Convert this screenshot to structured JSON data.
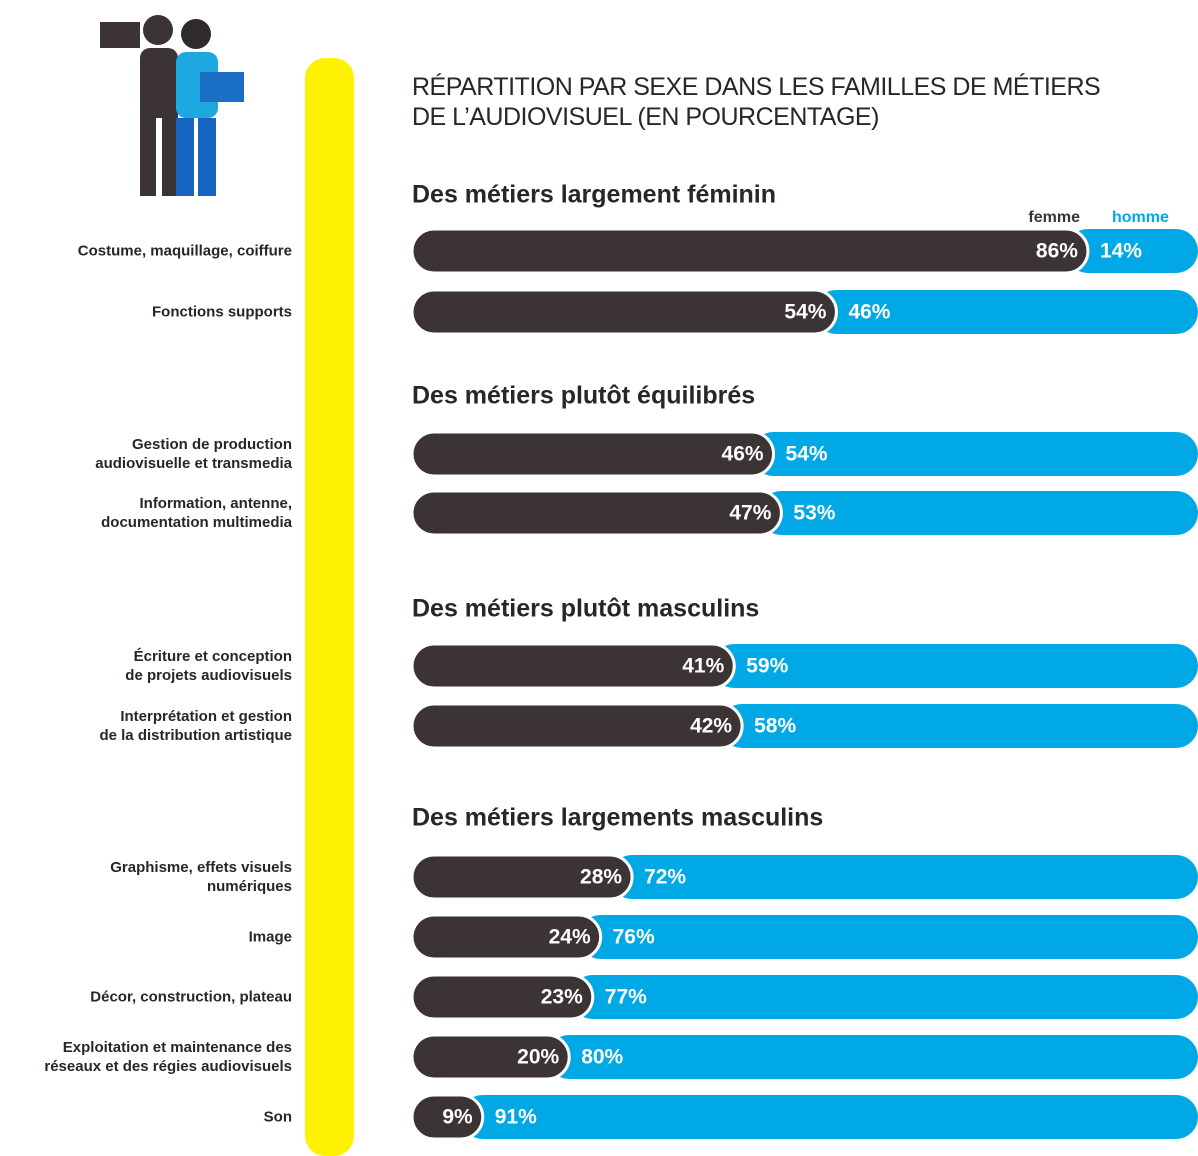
{
  "chart_data": {
    "type": "bar",
    "title": "RÉPARTITION PAR SEXE DANS LES FAMILLES DE MÉTIERS\nDE L’AUDIOVISUEL (EN POURCENTAGE)",
    "groups": [
      {
        "title": "Des métiers largement féminin",
        "categories": [
          "Costume, maquillage, coiffure",
          "Fonctions supports"
        ]
      },
      {
        "title": "Des métiers plutôt équilibrés",
        "categories": [
          "Gestion de production\naudiovisuelle et transmedia",
          "Information, antenne,\ndocumentation multimedia"
        ]
      },
      {
        "title": "Des métiers plutôt masculins",
        "categories": [
          "Écriture et conception\nde projets audiovisuels",
          "Interprétation et gestion\nde la distribution artistique"
        ]
      },
      {
        "title": "Des métiers largements masculins",
        "categories": [
          "Graphisme, effets visuels\nnumériques",
          "Image",
          "Décor, construction, plateau",
          "Exploitation et maintenance des\nréseaux et des régies audiovisuels",
          "Son"
        ]
      }
    ],
    "series": [
      {
        "name": "femme",
        "color": "#3b3334",
        "values": [
          86,
          54,
          46,
          47,
          41,
          42,
          28,
          24,
          23,
          20,
          9
        ],
        "value_labels": [
          "86%",
          "54%",
          "46%",
          "47%",
          "41%",
          "42%",
          "28%",
          "24%",
          "23%",
          "20%",
          "9%"
        ]
      },
      {
        "name": "homme",
        "color": "#00a9e6",
        "values": [
          14,
          46,
          54,
          53,
          59,
          58,
          72,
          76,
          77,
          80,
          91
        ],
        "value_labels": [
          "14%",
          "46%",
          "54%",
          "53%",
          "59%",
          "58%",
          "72%",
          "76%",
          "77%",
          "80%",
          "91%"
        ]
      }
    ]
  }
}
